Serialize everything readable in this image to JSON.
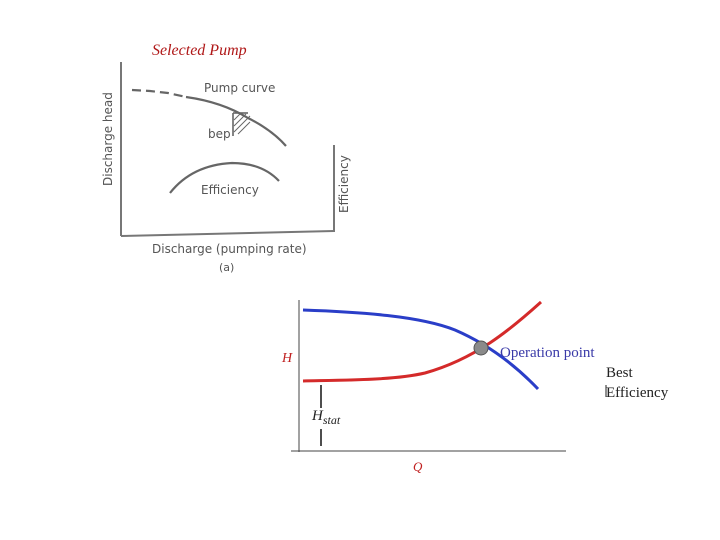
{
  "slide": {
    "title": "Selected Pump"
  },
  "figure_a": {
    "y_axis_label": "Discharge head",
    "right_axis_label": "Efficiency",
    "x_axis_label": "Discharge (pumping rate)",
    "caption": "(a)",
    "pump_curve_label": "Pump curve",
    "bep_label": "bep",
    "efficiency_label": "Efficiency"
  },
  "figure_b": {
    "h_label": "H",
    "h_stat_main": "H",
    "h_stat_sub": "stat",
    "q_label": "Q",
    "operation_point_label": "Operation point",
    "best_label": "Best",
    "efficiency_label": "Efficiency",
    "colors": {
      "pump_curve": "#2a3ec8",
      "system_curve": "#d42a2a",
      "operation_label": "#3a3aa8",
      "axis_labels": "#c02020",
      "operation_point_marker": "#8a8a8a"
    }
  }
}
